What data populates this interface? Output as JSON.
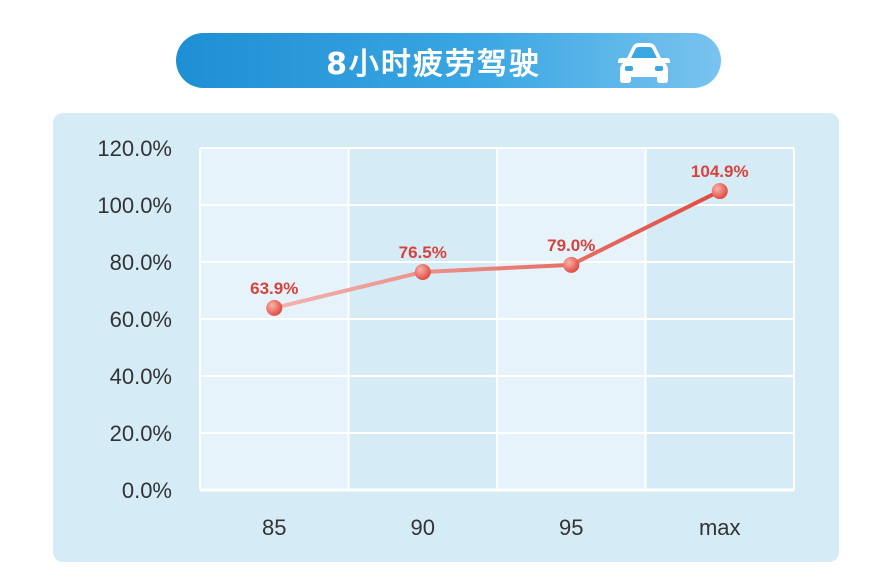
{
  "title": "8小时疲劳驾驶",
  "icon": "car-icon",
  "colors": {
    "line_start": "#f2b7b1",
    "line_end": "#e0463a",
    "label": "#d9413c",
    "grid": "#ffffff",
    "background_card": "#d5ecf6"
  },
  "chart_data": {
    "type": "line",
    "title": "8小时疲劳驾驶",
    "xlabel": "",
    "ylabel": "",
    "categories": [
      "85",
      "90",
      "95",
      "max"
    ],
    "series": [
      {
        "values": [
          63.9,
          76.5,
          79.0,
          104.9
        ]
      }
    ],
    "data_labels": [
      "63.9%",
      "76.5%",
      "79.0%",
      "104.9%"
    ],
    "y_ticks": [
      "0.0%",
      "20.0%",
      "40.0%",
      "60.0%",
      "80.0%",
      "100.0%",
      "120.0%"
    ],
    "ylim": [
      0,
      120
    ],
    "grid": true,
    "legend": "none"
  }
}
